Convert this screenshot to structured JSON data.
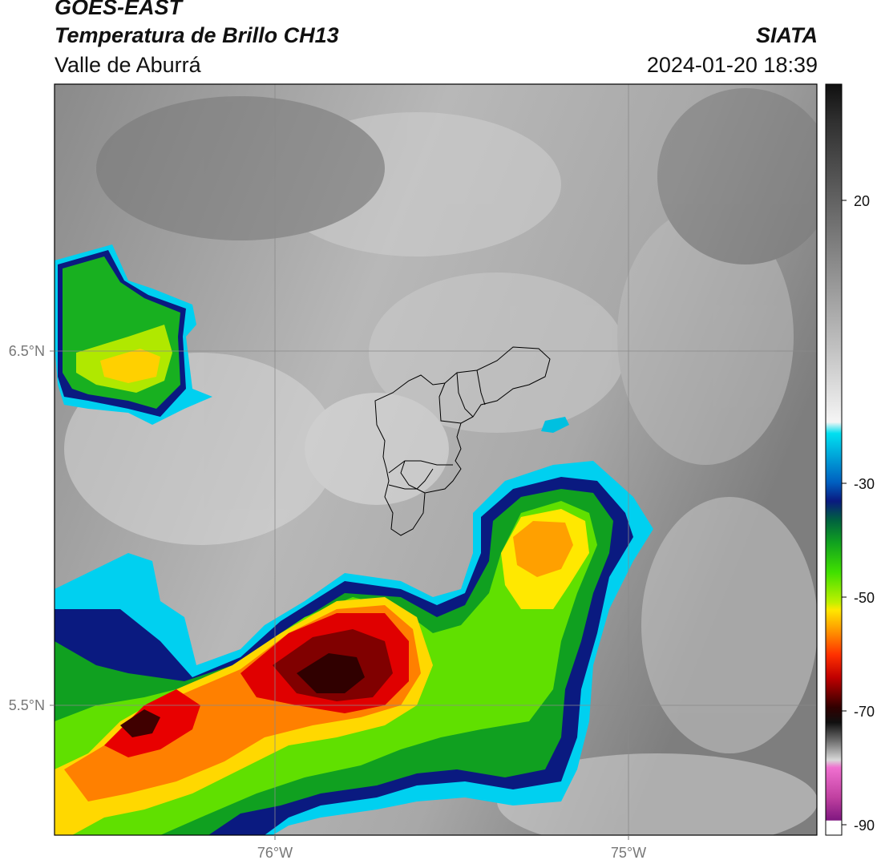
{
  "header": {
    "satellite": "GOES-EAST",
    "product": "Temperatura de Brillo CH13",
    "region": "Valle de Aburrá",
    "organization": "SIATA",
    "datetime": "2024-01-20 18:39"
  },
  "map": {
    "lat_ticks": [
      "6.5°N",
      "5.5°N"
    ],
    "lon_ticks": [
      "76°W",
      "75°W"
    ],
    "gridlines": true,
    "boundary": "Valle de Aburrá municipalities outline"
  },
  "colorbar": {
    "ticks": [
      "20",
      "-30",
      "-50",
      "-70",
      "-90"
    ],
    "range": [
      -90,
      30
    ],
    "colors": {
      "gray_warm": "#707070",
      "white": "#f2f2f2",
      "cyan": "#00d8f0",
      "dark_blue": "#0a1a80",
      "green": "#18c020",
      "yellow": "#ffe800",
      "orange": "#ff8800",
      "red": "#dd0000",
      "dark_red": "#300000",
      "magenta": "#e040c0",
      "purple": "#801880"
    }
  }
}
